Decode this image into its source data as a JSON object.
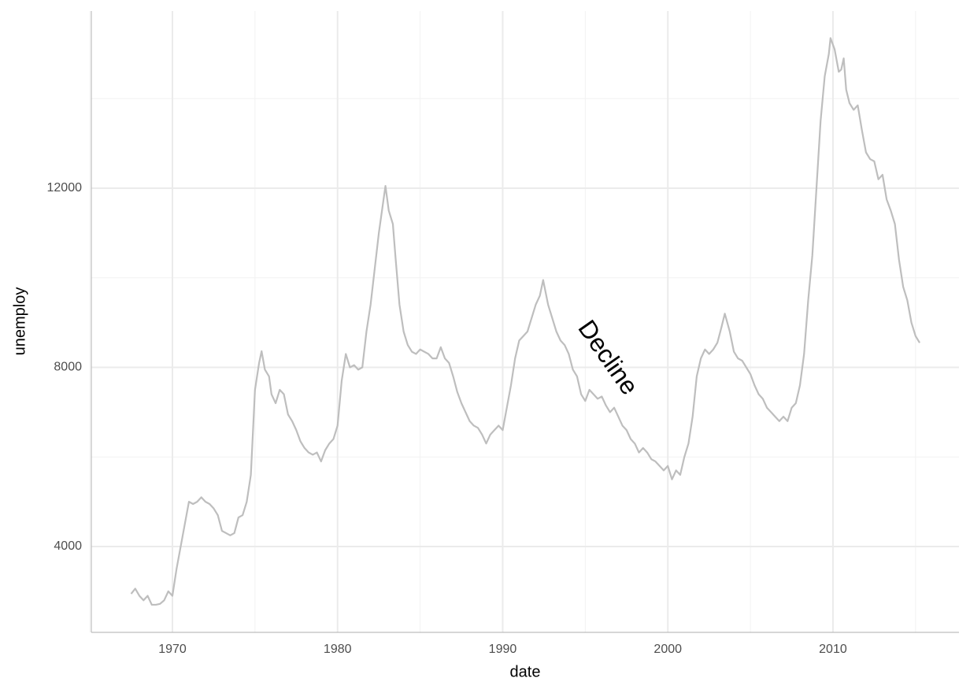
{
  "chart_data": {
    "type": "line",
    "x_label": "date",
    "y_label": "unemploy",
    "color": "#bebebe",
    "grid": true,
    "xlim": [
      1965.09,
      2017.63
    ],
    "ylim": [
      2084,
      15956
    ],
    "xticks": [
      1970,
      1980,
      1990,
      2000,
      2010
    ],
    "yticks": [
      4000,
      8000,
      12000
    ],
    "xminorticks": [
      1965,
      1975,
      1985,
      1995,
      2005,
      2015
    ],
    "yminorticks": [
      6000,
      10000,
      14000
    ],
    "annotation": {
      "text": "Decline",
      "x": 1996.3,
      "y": 8200,
      "angle": -55
    },
    "x": [
      1967.5,
      1967.75,
      1968.0,
      1968.25,
      1968.5,
      1968.75,
      1969.0,
      1969.25,
      1969.5,
      1969.75,
      1970.0,
      1970.25,
      1970.5,
      1970.75,
      1971.0,
      1971.25,
      1971.5,
      1971.75,
      1972.0,
      1972.25,
      1972.5,
      1972.75,
      1973.0,
      1973.25,
      1973.5,
      1973.75,
      1974.0,
      1974.25,
      1974.5,
      1974.75,
      1975.0,
      1975.25,
      1975.4,
      1975.6,
      1975.85,
      1976.0,
      1976.25,
      1976.5,
      1976.75,
      1977.0,
      1977.25,
      1977.5,
      1977.75,
      1978.0,
      1978.25,
      1978.5,
      1978.75,
      1979.0,
      1979.25,
      1979.5,
      1979.75,
      1980.0,
      1980.25,
      1980.5,
      1980.75,
      1981.0,
      1981.25,
      1981.5,
      1981.75,
      1982.0,
      1982.25,
      1982.5,
      1982.9,
      1983.1,
      1983.35,
      1983.5,
      1983.75,
      1984.0,
      1984.25,
      1984.5,
      1984.75,
      1985.0,
      1985.25,
      1985.5,
      1985.75,
      1986.0,
      1986.25,
      1986.5,
      1986.75,
      1987.0,
      1987.25,
      1987.5,
      1987.75,
      1988.0,
      1988.25,
      1988.5,
      1988.75,
      1989.0,
      1989.25,
      1989.5,
      1989.75,
      1990.0,
      1990.25,
      1990.5,
      1990.75,
      1991.0,
      1991.25,
      1991.5,
      1991.75,
      1992.0,
      1992.25,
      1992.45,
      1992.75,
      1993.0,
      1993.25,
      1993.5,
      1993.75,
      1994.0,
      1994.25,
      1994.5,
      1994.75,
      1995.0,
      1995.25,
      1995.5,
      1995.75,
      1996.0,
      1996.25,
      1996.5,
      1996.75,
      1997.0,
      1997.25,
      1997.5,
      1997.75,
      1998.0,
      1998.25,
      1998.5,
      1998.75,
      1999.0,
      1999.25,
      1999.5,
      1999.75,
      2000.0,
      2000.25,
      2000.5,
      2000.75,
      2001.0,
      2001.25,
      2001.5,
      2001.75,
      2002.0,
      2002.25,
      2002.5,
      2002.75,
      2003.0,
      2003.25,
      2003.45,
      2003.75,
      2004.0,
      2004.25,
      2004.5,
      2004.75,
      2005.0,
      2005.25,
      2005.5,
      2005.75,
      2006.0,
      2006.25,
      2006.5,
      2006.75,
      2007.0,
      2007.25,
      2007.5,
      2007.75,
      2008.0,
      2008.25,
      2008.5,
      2008.75,
      2009.0,
      2009.25,
      2009.5,
      2009.75,
      2009.85,
      2010.1,
      2010.35,
      2010.5,
      2010.65,
      2010.8,
      2011.0,
      2011.25,
      2011.5,
      2011.75,
      2012.0,
      2012.25,
      2012.5,
      2012.75,
      2013.0,
      2013.25,
      2013.5,
      2013.75,
      2014.0,
      2014.25,
      2014.5,
      2014.75,
      2015.0,
      2015.25
    ],
    "values": [
      2944,
      3060,
      2900,
      2800,
      2900,
      2700,
      2700,
      2720,
      2800,
      3000,
      2900,
      3500,
      4000,
      4500,
      5000,
      4950,
      5000,
      5100,
      5000,
      4950,
      4850,
      4700,
      4350,
      4300,
      4250,
      4300,
      4650,
      4700,
      5000,
      5600,
      7500,
      8100,
      8361,
      7950,
      7800,
      7400,
      7200,
      7500,
      7400,
      6950,
      6800,
      6600,
      6350,
      6200,
      6100,
      6050,
      6100,
      5900,
      6150,
      6300,
      6400,
      6700,
      7700,
      8300,
      8000,
      8050,
      7950,
      8000,
      8800,
      9400,
      10200,
      11000,
      12051,
      11500,
      11200,
      10500,
      9400,
      8800,
      8500,
      8350,
      8300,
      8400,
      8350,
      8300,
      8200,
      8200,
      8450,
      8200,
      8100,
      7800,
      7450,
      7200,
      7000,
      6800,
      6700,
      6650,
      6500,
      6300,
      6500,
      6600,
      6700,
      6600,
      7100,
      7600,
      8200,
      8600,
      8700,
      8800,
      9100,
      9400,
      9600,
      9950,
      9400,
      9100,
      8800,
      8600,
      8500,
      8300,
      7950,
      7800,
      7400,
      7250,
      7500,
      7400,
      7300,
      7350,
      7150,
      7000,
      7100,
      6900,
      6700,
      6600,
      6400,
      6300,
      6100,
      6200,
      6100,
      5950,
      5900,
      5800,
      5700,
      5800,
      5500,
      5700,
      5600,
      6000,
      6300,
      6900,
      7800,
      8200,
      8400,
      8300,
      8400,
      8550,
      8900,
      9200,
      8800,
      8350,
      8200,
      8150,
      8000,
      7850,
      7600,
      7400,
      7300,
      7100,
      7000,
      6900,
      6800,
      6900,
      6800,
      7100,
      7200,
      7600,
      8300,
      9500,
      10500,
      12000,
      13500,
      14500,
      15000,
      15352,
      15100,
      14600,
      14650,
      14900,
      14200,
      13900,
      13750,
      13850,
      13300,
      12800,
      12650,
      12600,
      12200,
      12300,
      11750,
      11500,
      11200,
      10400,
      9800,
      9500,
      9000,
      8700,
      8549
    ]
  }
}
